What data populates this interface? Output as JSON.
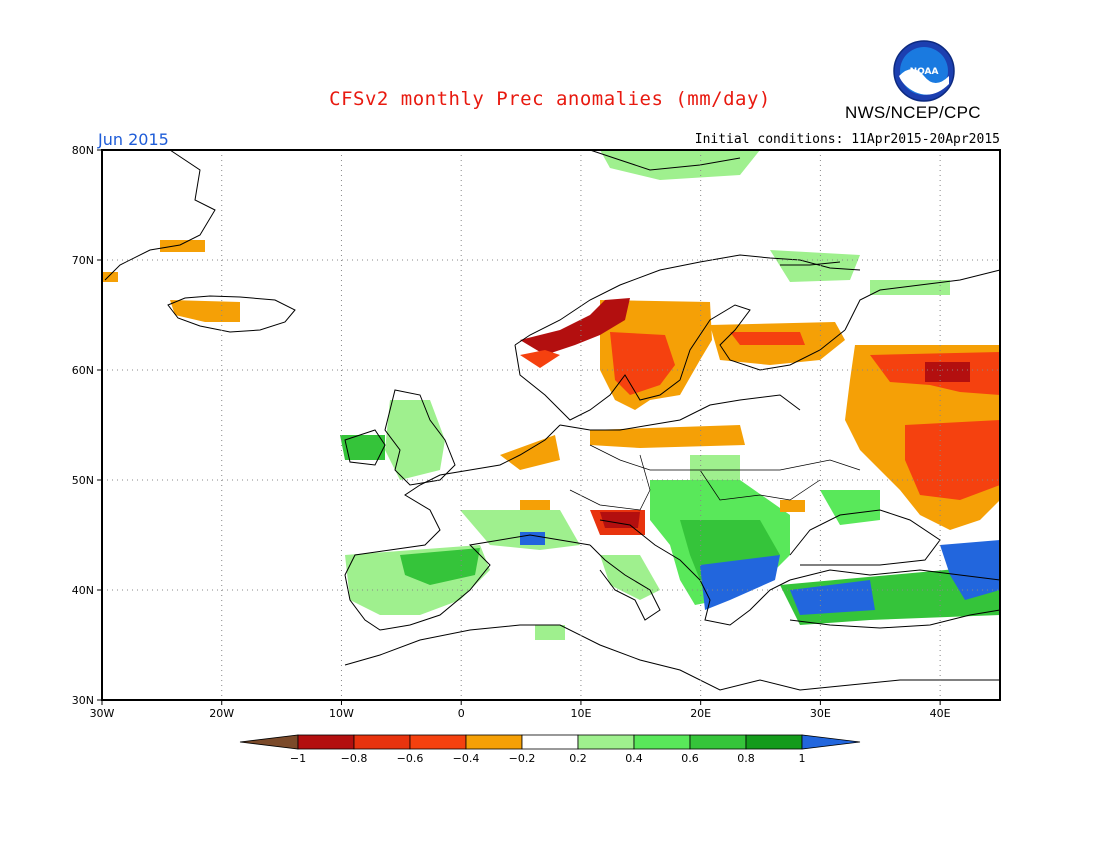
{
  "title": "CFSv2 monthly Prec anomalies (mm/day)",
  "org": "NWS/NCEP/CPC",
  "logo_text": "NOAA",
  "month_label": "Jun 2015",
  "init_label": "Initial conditions: 11Apr2015-20Apr2015",
  "map": {
    "lon_range": [
      -30,
      45
    ],
    "lat_range": [
      30,
      80
    ],
    "lat_ticks": [
      "30N",
      "40N",
      "50N",
      "60N",
      "70N",
      "80N"
    ],
    "lon_ticks": [
      "30W",
      "20W",
      "10W",
      "0",
      "10E",
      "20E",
      "30E",
      "40E"
    ],
    "grid": true
  },
  "colorbar": {
    "labels": [
      "-1",
      "-0.8",
      "-0.6",
      "-0.4",
      "-0.2",
      "0.2",
      "0.4",
      "0.6",
      "0.8",
      "1"
    ],
    "colors": [
      "#7b4a2a",
      "#b30f0f",
      "#e8330e",
      "#f5410f",
      "#f5a006",
      "#ffffff",
      "#9ff08e",
      "#59e85a",
      "#35c43a",
      "#139b1b",
      "#2266dd"
    ]
  },
  "anomaly_regions": [
    {
      "region": "Scandinavia",
      "category": "-0.4 to -0.2"
    },
    {
      "region": "Western Norway",
      "category": "-0.8 to -0.6"
    },
    {
      "region": "Western Russia",
      "category": "-0.6 to -0.4"
    },
    {
      "region": "Alps / Northern Italy",
      "category": "-0.8 to -0.6"
    },
    {
      "region": "Balkans",
      "category": "0.6 to 0.8"
    },
    {
      "region": "Aegean / Turkey",
      "category": "> 1"
    },
    {
      "region": "Iberia",
      "category": "0.2 to 0.6"
    },
    {
      "region": "British Isles",
      "category": "0.2 to 0.6"
    }
  ]
}
